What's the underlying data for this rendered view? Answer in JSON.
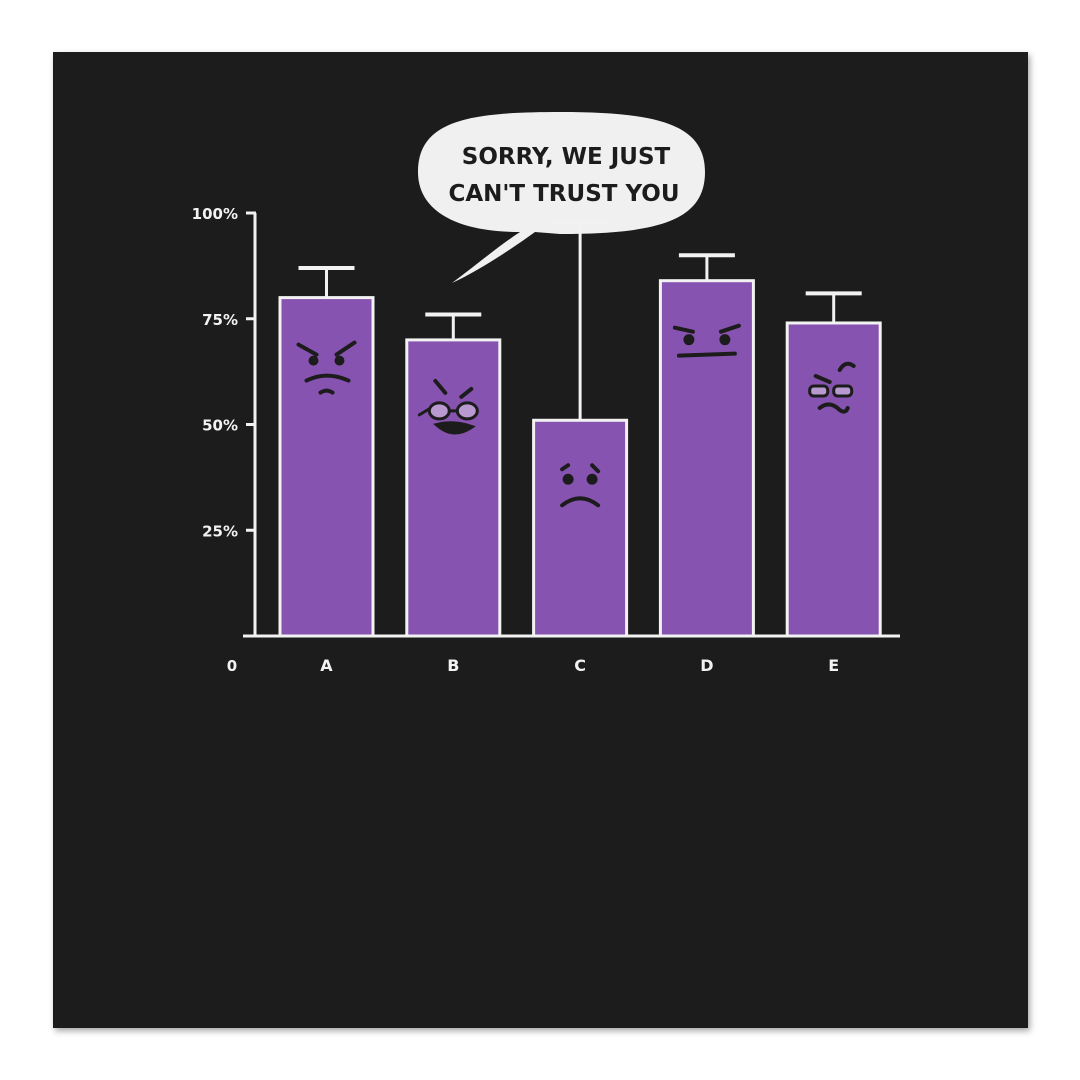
{
  "chart_data": {
    "type": "bar",
    "title": "",
    "xlabel": "",
    "ylabel": "",
    "categories": [
      "A",
      "B",
      "C",
      "D",
      "E"
    ],
    "values": [
      80,
      70,
      51,
      84,
      74
    ],
    "error_upper": [
      87,
      76,
      98,
      90,
      81
    ],
    "ylim": [
      0,
      100
    ],
    "yticks": [
      25,
      50,
      75,
      100
    ],
    "ytick_labels": [
      "25%",
      "50%",
      "75%",
      "100%"
    ],
    "origin_label": "0",
    "grid": false,
    "legend": "none",
    "annotation": {
      "line1": "SORRY, WE JUST",
      "line2": "CAN'T TRUST YOU"
    },
    "colors": {
      "bar": "#8753b0",
      "outline": "#f2f2f2",
      "background": "#1d1c1d",
      "bubble": "#f0f0f0"
    },
    "faces": [
      "angry",
      "angry-glasses",
      "sad",
      "suspicious",
      "skeptical-glasses"
    ]
  }
}
